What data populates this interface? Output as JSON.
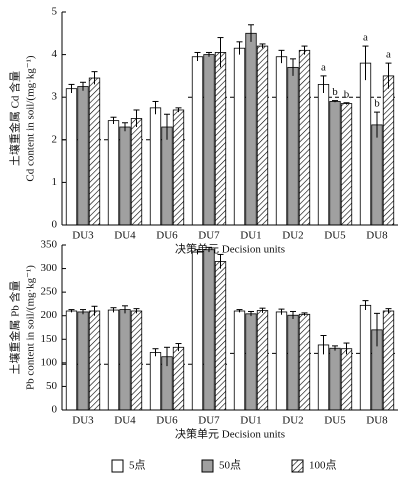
{
  "chart_data": [
    {
      "type": "bar",
      "ylabel": [
        "土壤重金属 Cd 含量",
        "Cd content in soil/(mg·kg⁻¹)"
      ],
      "xlabel": "决策单元 Decision units",
      "categories": [
        "DU3",
        "DU4",
        "DU6",
        "DU7",
        "DU1",
        "DU2",
        "DU5",
        "DU8"
      ],
      "ylim": [
        0,
        5
      ],
      "yticks": [
        0,
        1,
        2,
        3,
        4,
        5
      ],
      "series": [
        {
          "values": [
            3.2,
            2.45,
            2.75,
            3.95,
            4.15,
            3.95,
            3.3,
            3.8
          ],
          "errors": [
            0.1,
            0.08,
            0.15,
            0.1,
            0.15,
            0.15,
            0.2,
            0.4
          ],
          "labels": [
            null,
            null,
            null,
            null,
            null,
            null,
            "a",
            "a"
          ]
        },
        {
          "values": [
            3.25,
            2.3,
            2.3,
            4.0,
            4.5,
            3.7,
            2.9,
            2.35
          ],
          "errors": [
            0.1,
            0.1,
            0.3,
            0.05,
            0.2,
            0.2,
            0.02,
            0.3
          ],
          "labels": [
            null,
            null,
            null,
            null,
            null,
            null,
            "b",
            "b"
          ]
        },
        {
          "values": [
            3.45,
            2.5,
            2.7,
            4.05,
            4.2,
            4.1,
            2.85,
            3.5
          ],
          "errors": [
            0.15,
            0.2,
            0.05,
            0.35,
            0.05,
            0.1,
            0.02,
            0.3
          ],
          "labels": [
            null,
            null,
            null,
            null,
            null,
            null,
            "b",
            "a"
          ]
        }
      ],
      "reference_lines": [
        {
          "value": 2,
          "start": 0,
          "end": 2
        },
        {
          "value": 3,
          "start": 3,
          "end": 7
        }
      ]
    },
    {
      "type": "bar",
      "ylabel": [
        "土壤重金属 Pb 含量",
        "Pb content in soil/(mg·kg⁻¹)"
      ],
      "xlabel": "决策单元 Decision units",
      "categories": [
        "DU3",
        "DU4",
        "DU6",
        "DU7",
        "DU1",
        "DU2",
        "DU5",
        "DU8"
      ],
      "ylim": [
        0,
        350
      ],
      "yticks": [
        0,
        50,
        100,
        150,
        200,
        250,
        300,
        350
      ],
      "series": [
        {
          "values": [
            210,
            212,
            122,
            335,
            210,
            208,
            138,
            222
          ],
          "errors": [
            3,
            5,
            8,
            5,
            3,
            6,
            20,
            10
          ]
        },
        {
          "values": [
            208,
            213,
            113,
            340,
            204,
            201,
            131,
            170
          ],
          "errors": [
            5,
            8,
            20,
            5,
            5,
            8,
            5,
            35
          ]
        },
        {
          "values": [
            210,
            210,
            133,
            315,
            211,
            203,
            130,
            210
          ],
          "errors": [
            10,
            5,
            8,
            15,
            5,
            3,
            12,
            5
          ]
        }
      ],
      "reference_lines": [
        {
          "value": 97,
          "start": 0,
          "end": 3
        },
        {
          "value": 120,
          "start": 4,
          "end": 7
        }
      ]
    }
  ],
  "legend": [
    {
      "name": "5点",
      "color": "#ffffff",
      "hatch": false
    },
    {
      "name": "50点",
      "color": "#a0a0a0",
      "hatch": false
    },
    {
      "name": "100点",
      "color": "#ffffff",
      "hatch": true
    }
  ]
}
